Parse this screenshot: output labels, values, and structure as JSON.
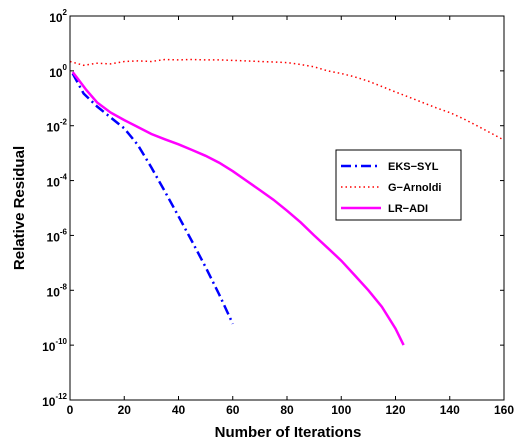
{
  "chart_data": {
    "type": "line",
    "title": "",
    "xlabel": "Number of Iterations",
    "ylabel": "Relative Residual",
    "yscale": "log",
    "xlim": [
      0,
      160
    ],
    "ylim": [
      1e-12,
      100
    ],
    "xticks": [
      0,
      20,
      40,
      60,
      80,
      100,
      120,
      140,
      160
    ],
    "yticks": [
      {
        "value": 100,
        "base": "10",
        "exp": "2"
      },
      {
        "value": 1,
        "base": "10",
        "exp": "0"
      },
      {
        "value": 0.01,
        "base": "10",
        "exp": "-2"
      },
      {
        "value": 0.0001,
        "base": "10",
        "exp": "-4"
      },
      {
        "value": 1e-06,
        "base": "10",
        "exp": "-6"
      },
      {
        "value": 1e-08,
        "base": "10",
        "exp": "-8"
      },
      {
        "value": 1e-10,
        "base": "10",
        "exp": "-10"
      },
      {
        "value": 1e-12,
        "base": "10",
        "exp": "-12"
      }
    ],
    "grid": false,
    "legend_position": "right",
    "series": [
      {
        "name": "EKS−SYL",
        "color": "#0000ff",
        "style": "dashdot",
        "x": [
          1,
          5,
          10,
          15,
          20,
          25,
          30,
          35,
          40,
          45,
          50,
          55,
          60
        ],
        "y": [
          0.8,
          0.15,
          0.05,
          0.02,
          0.008,
          0.002,
          0.0003,
          4e-05,
          5e-06,
          6e-07,
          7e-08,
          7e-09,
          6e-10
        ]
      },
      {
        "name": "G−Arnoldi",
        "color": "#ff0000",
        "style": "dotted",
        "x": [
          0,
          5,
          10,
          15,
          20,
          25,
          30,
          35,
          40,
          45,
          50,
          55,
          60,
          65,
          70,
          75,
          80,
          85,
          90,
          95,
          100,
          105,
          110,
          115,
          120,
          125,
          130,
          135,
          140,
          145,
          150,
          155,
          160
        ],
        "y": [
          2.2,
          1.6,
          1.9,
          1.8,
          2.2,
          2.3,
          2.2,
          2.6,
          2.5,
          2.6,
          2.5,
          2.5,
          2.4,
          2.3,
          2.2,
          2.1,
          2.0,
          1.7,
          1.4,
          1.0,
          0.8,
          0.6,
          0.42,
          0.27,
          0.17,
          0.11,
          0.07,
          0.045,
          0.03,
          0.018,
          0.01,
          0.0055,
          0.003
        ]
      },
      {
        "name": "LR−ADI",
        "color": "#ff00ff",
        "style": "solid",
        "x": [
          1,
          3,
          6,
          10,
          15,
          20,
          25,
          30,
          35,
          40,
          45,
          50,
          55,
          60,
          65,
          70,
          75,
          80,
          85,
          90,
          95,
          100,
          105,
          110,
          115,
          120,
          123
        ],
        "y": [
          0.9,
          0.5,
          0.2,
          0.07,
          0.03,
          0.016,
          0.009,
          0.005,
          0.0032,
          0.0021,
          0.0013,
          0.0008,
          0.00045,
          0.00022,
          0.0001,
          4.5e-05,
          2e-05,
          8e-06,
          3e-06,
          1e-06,
          3.5e-07,
          1.2e-07,
          3.5e-08,
          1e-08,
          2.5e-09,
          4e-10,
          1e-10
        ]
      }
    ]
  }
}
